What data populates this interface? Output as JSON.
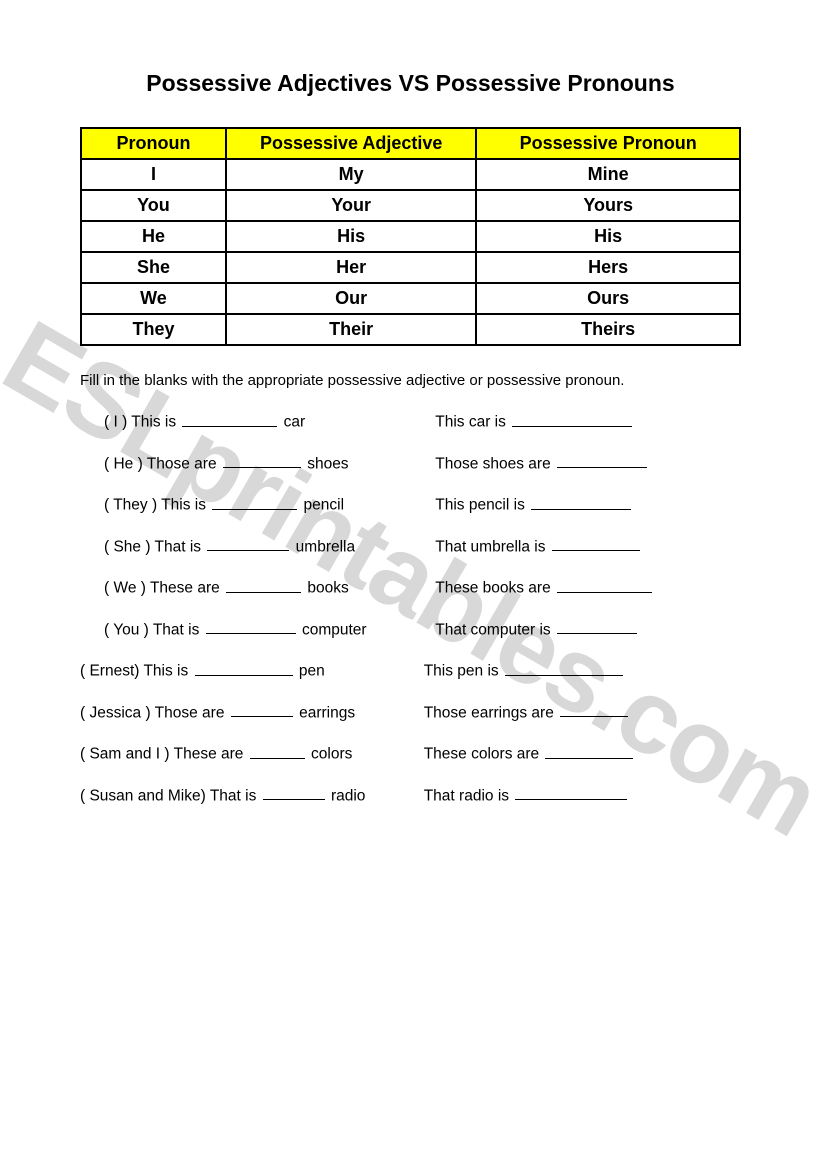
{
  "title": "Possessive Adjectives VS Possessive Pronouns",
  "watermark": "ESLprintables.com",
  "table": {
    "headers": [
      "Pronoun",
      "Possessive Adjective",
      "Possessive Pronoun"
    ],
    "rows": [
      [
        "I",
        "My",
        "Mine"
      ],
      [
        "You",
        "Your",
        "Yours"
      ],
      [
        "He",
        "His",
        "His"
      ],
      [
        "She",
        "Her",
        "Hers"
      ],
      [
        "We",
        "Our",
        "Ours"
      ],
      [
        "They",
        "Their",
        "Theirs"
      ]
    ],
    "header_bg": "#ffff00",
    "border_color": "#000000",
    "col_widths": [
      "22%",
      "38%",
      "40%"
    ]
  },
  "instructions": "Fill in the blanks with the appropriate possessive adjective or possessive pronoun.",
  "exercises": [
    {
      "cue": "( I )",
      "left_a": "This is",
      "left_b": "car",
      "right_a": "This car is",
      "bl1": 95,
      "bl2": 120,
      "indent": 24
    },
    {
      "cue": "( He )",
      "left_a": "Those are",
      "left_b": "shoes",
      "right_a": "Those shoes are",
      "bl1": 78,
      "bl2": 90,
      "indent": 24
    },
    {
      "cue": "( They )",
      "left_a": "This is",
      "left_b": "pencil",
      "right_a": "This pencil is",
      "bl1": 85,
      "bl2": 100,
      "indent": 24
    },
    {
      "cue": "( She )",
      "left_a": "That is",
      "left_b": "umbrella",
      "right_a": "That umbrella is",
      "bl1": 82,
      "bl2": 88,
      "indent": 24
    },
    {
      "cue": "( We )",
      "left_a": "These are",
      "left_b": "books",
      "right_a": "These books are",
      "bl1": 75,
      "bl2": 95,
      "indent": 24
    },
    {
      "cue": "( You )",
      "left_a": "That is",
      "left_b": "computer",
      "right_a": "That computer is",
      "bl1": 90,
      "bl2": 80,
      "indent": 24
    },
    {
      "cue": "( Ernest)",
      "left_a": "This is",
      "left_b": "pen",
      "right_a": "This pen is",
      "bl1": 98,
      "bl2": 118,
      "indent": 0
    },
    {
      "cue": "( Jessica )",
      "left_a": "Those are",
      "left_b": "earrings",
      "right_a": "Those earrings are",
      "bl1": 62,
      "bl2": 68,
      "indent": 0
    },
    {
      "cue": "( Sam and I )",
      "left_a": "These are",
      "left_b": "colors",
      "right_a": "These colors are",
      "bl1": 55,
      "bl2": 88,
      "indent": 0
    },
    {
      "cue": "( Susan and Mike)",
      "left_a": "That is",
      "left_b": "radio",
      "right_a": "That radio is",
      "bl1": 62,
      "bl2": 112,
      "indent": 0
    }
  ]
}
